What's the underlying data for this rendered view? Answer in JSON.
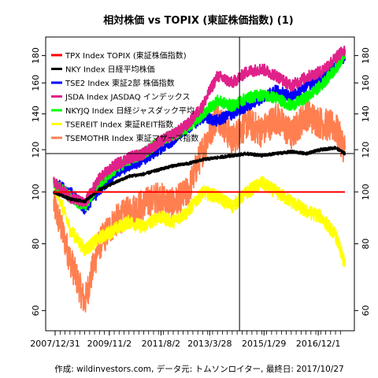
{
  "chart_data": {
    "type": "line",
    "title": "相対株価 vs TOPIX (東証株価指数) (1)",
    "caption": "作成: wildinvestors.com, データ元: トムソンロイター, 最終日: 2017/10/27",
    "y_scale": "log",
    "ylim": [
      55,
      195
    ],
    "y_ticks": [
      60,
      80,
      100,
      120,
      140,
      160,
      180
    ],
    "x_tick_labels": [
      "2007/12/31",
      "2009/11/2",
      "2011/8/2",
      "2013/3/28",
      "2015/1/29",
      "2016/12/1"
    ],
    "x_tick_dates": [
      "2007-12-31",
      "2009-11-02",
      "2011-08-02",
      "2013-03-28",
      "2015-01-29",
      "2016-12-01"
    ],
    "x_range": [
      "2007-12-31",
      "2017-10-27"
    ],
    "crosshair": {
      "date": "2014-04-01",
      "value": 118
    },
    "grid": false,
    "legend_position": "top-left",
    "series": [
      {
        "name": "TPX Index TOPIX (東証株価指数)",
        "color": "#ff0000",
        "values": [
          [
            2007.95,
            100
          ],
          [
            2017.82,
            100
          ]
        ]
      },
      {
        "name": "NKY Index 日経平均株価",
        "color": "#000000",
        "values": [
          [
            2007.95,
            100
          ],
          [
            2008.5,
            97
          ],
          [
            2009.0,
            96
          ],
          [
            2009.5,
            101
          ],
          [
            2010.0,
            104
          ],
          [
            2010.5,
            107
          ],
          [
            2011.0,
            108
          ],
          [
            2011.5,
            110
          ],
          [
            2012.0,
            112
          ],
          [
            2012.5,
            113
          ],
          [
            2013.0,
            115
          ],
          [
            2013.5,
            116
          ],
          [
            2014.0,
            117
          ],
          [
            2014.5,
            118
          ],
          [
            2015.0,
            117
          ],
          [
            2015.5,
            118
          ],
          [
            2016.0,
            119
          ],
          [
            2016.5,
            118
          ],
          [
            2017.0,
            120
          ],
          [
            2017.5,
            121
          ],
          [
            2017.82,
            118
          ]
        ]
      },
      {
        "name": "TSE2 Index 東証2部 株価指数",
        "color": "#0000ff",
        "values": [
          [
            2007.95,
            104
          ],
          [
            2008.5,
            100
          ],
          [
            2009.0,
            93
          ],
          [
            2009.5,
            101
          ],
          [
            2010.0,
            108
          ],
          [
            2010.5,
            112
          ],
          [
            2011.0,
            115
          ],
          [
            2011.5,
            120
          ],
          [
            2012.0,
            125
          ],
          [
            2012.5,
            132
          ],
          [
            2013.0,
            138
          ],
          [
            2013.5,
            136
          ],
          [
            2014.0,
            140
          ],
          [
            2014.5,
            145
          ],
          [
            2015.0,
            150
          ],
          [
            2015.5,
            155
          ],
          [
            2016.0,
            150
          ],
          [
            2016.5,
            158
          ],
          [
            2017.0,
            163
          ],
          [
            2017.5,
            172
          ],
          [
            2017.82,
            180
          ]
        ]
      },
      {
        "name": "JSDA Index JASDAQ インデックス",
        "color": "#e0218a",
        "values": [
          [
            2007.95,
            104
          ],
          [
            2008.5,
            98
          ],
          [
            2009.0,
            95
          ],
          [
            2009.5,
            106
          ],
          [
            2010.0,
            112
          ],
          [
            2010.5,
            116
          ],
          [
            2011.0,
            118
          ],
          [
            2011.5,
            124
          ],
          [
            2012.0,
            128
          ],
          [
            2012.5,
            134
          ],
          [
            2013.0,
            145
          ],
          [
            2013.5,
            165
          ],
          [
            2014.0,
            160
          ],
          [
            2014.5,
            168
          ],
          [
            2015.0,
            170
          ],
          [
            2015.5,
            165
          ],
          [
            2016.0,
            158
          ],
          [
            2016.5,
            164
          ],
          [
            2017.0,
            168
          ],
          [
            2017.5,
            178
          ],
          [
            2017.82,
            185
          ]
        ]
      },
      {
        "name": "NKYJQ Index 日経ジャスダック平均",
        "color": "#00ff00",
        "values": [
          [
            2007.95,
            104
          ],
          [
            2008.5,
            98
          ],
          [
            2009.0,
            94
          ],
          [
            2009.5,
            104
          ],
          [
            2010.0,
            110
          ],
          [
            2010.5,
            115
          ],
          [
            2011.0,
            118
          ],
          [
            2011.5,
            124
          ],
          [
            2012.0,
            128
          ],
          [
            2012.5,
            132
          ],
          [
            2013.0,
            140
          ],
          [
            2013.5,
            148
          ],
          [
            2014.0,
            145
          ],
          [
            2014.5,
            150
          ],
          [
            2015.0,
            152
          ],
          [
            2015.5,
            150
          ],
          [
            2016.0,
            145
          ],
          [
            2016.5,
            150
          ],
          [
            2017.0,
            158
          ],
          [
            2017.5,
            170
          ],
          [
            2017.82,
            182
          ]
        ]
      },
      {
        "name": "TSEREIT Index 東証REIT指数",
        "color": "#ffff00",
        "values": [
          [
            2007.95,
            104
          ],
          [
            2008.5,
            85
          ],
          [
            2009.0,
            78
          ],
          [
            2009.5,
            82
          ],
          [
            2010.0,
            85
          ],
          [
            2010.5,
            88
          ],
          [
            2011.0,
            86
          ],
          [
            2011.5,
            90
          ],
          [
            2012.0,
            88
          ],
          [
            2012.5,
            92
          ],
          [
            2013.0,
            100
          ],
          [
            2013.5,
            98
          ],
          [
            2014.0,
            94
          ],
          [
            2014.5,
            100
          ],
          [
            2015.0,
            104
          ],
          [
            2015.5,
            100
          ],
          [
            2016.0,
            96
          ],
          [
            2016.5,
            92
          ],
          [
            2017.0,
            90
          ],
          [
            2017.5,
            83
          ],
          [
            2017.82,
            73
          ]
        ]
      },
      {
        "name": "TSEMOTHR Index 東証マザーズ指数",
        "color": "#ff7f50",
        "values": [
          [
            2007.95,
            95
          ],
          [
            2008.5,
            75
          ],
          [
            2009.0,
            62
          ],
          [
            2009.5,
            80
          ],
          [
            2010.0,
            88
          ],
          [
            2010.5,
            92
          ],
          [
            2011.0,
            95
          ],
          [
            2011.5,
            98
          ],
          [
            2012.0,
            95
          ],
          [
            2012.5,
            100
          ],
          [
            2013.0,
            120
          ],
          [
            2013.5,
            140
          ],
          [
            2014.0,
            125
          ],
          [
            2014.5,
            135
          ],
          [
            2015.0,
            130
          ],
          [
            2015.5,
            138
          ],
          [
            2016.0,
            128
          ],
          [
            2016.5,
            140
          ],
          [
            2017.0,
            135
          ],
          [
            2017.5,
            132
          ],
          [
            2017.82,
            120
          ]
        ]
      }
    ]
  }
}
